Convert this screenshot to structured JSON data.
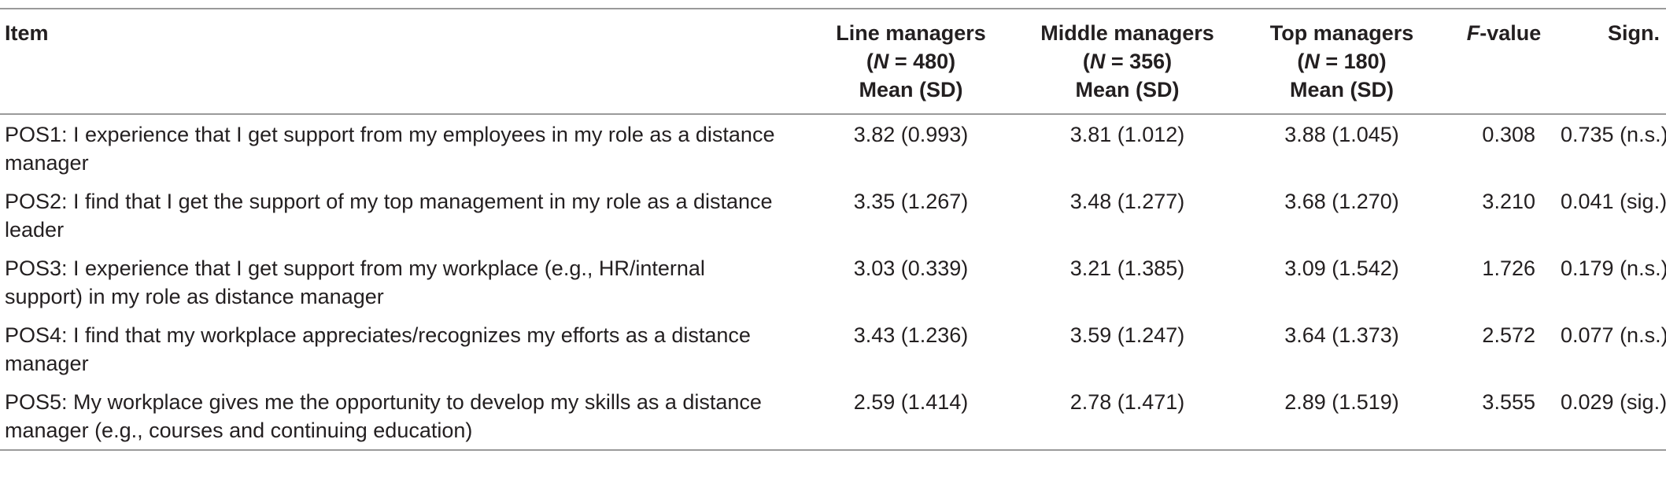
{
  "table": {
    "headers": {
      "item": "Item",
      "line": {
        "title": "Line managers",
        "n_label": "N",
        "n_value": " = 480)",
        "stat": "Mean (SD)"
      },
      "middle": {
        "title": "Middle managers",
        "n_label": "N",
        "n_value": " = 356)",
        "stat": "Mean (SD)"
      },
      "top": {
        "title": "Top managers",
        "n_label": "N",
        "n_value": " = 180)",
        "stat": "Mean (SD)"
      },
      "f_value": {
        "italic": "F",
        "rest": "-value"
      },
      "sign": "Sign."
    },
    "rows": [
      {
        "item": "POS1: I experience that I get support from my employees in my role as a distance manager",
        "line": "3.82 (0.993)",
        "middle": "3.81 (1.012)",
        "top": "3.88 (1.045)",
        "f": "0.308",
        "sign": "0.735 (n.s.)"
      },
      {
        "item": "POS2: I find that I get the support of my top management in my role as a distance leader",
        "line": "3.35 (1.267)",
        "middle": "3.48 (1.277)",
        "top": "3.68 (1.270)",
        "f": "3.210",
        "sign": "0.041 (sig.)"
      },
      {
        "item": "POS3: I experience that I get support from my workplace (e.g., HR/internal support) in my role as distance manager",
        "line": "3.03 (0.339)",
        "middle": "3.21 (1.385)",
        "top": "3.09 (1.542)",
        "f": "1.726",
        "sign": "0.179 (n.s.)"
      },
      {
        "item": "POS4: I find that my workplace appreciates/recognizes my efforts as a distance manager",
        "line": "3.43 (1.236)",
        "middle": "3.59 (1.247)",
        "top": "3.64 (1.373)",
        "f": "2.572",
        "sign": "0.077 (n.s.)"
      },
      {
        "item": "POS5: My workplace gives me the opportunity to develop my skills as a distance manager (e.g., courses and continuing education)",
        "line": "2.59 (1.414)",
        "middle": "2.78 (1.471)",
        "top": "2.89 (1.519)",
        "f": "3.555",
        "sign": "0.029 (sig.)"
      }
    ]
  }
}
